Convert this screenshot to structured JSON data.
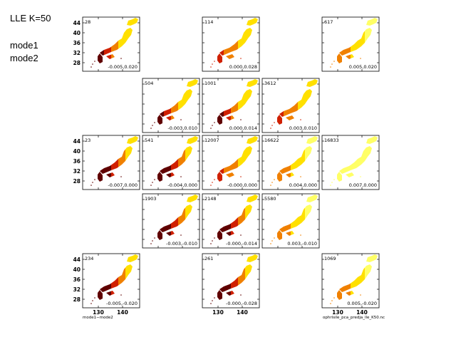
{
  "header": {
    "title": "LLE K=50",
    "mode1": "mode1",
    "mode2": "mode2"
  },
  "axes": {
    "y_ticks": [
      "44",
      "40",
      "36",
      "32",
      "28"
    ],
    "x_ticks": [
      "130",
      "140"
    ]
  },
  "footer": {
    "left": "mode1−mode2",
    "right": "ophrisile_pca_predja_lle_K50.nc"
  },
  "colors": {
    "light_yellow": "#ffff66",
    "yellow": "#ffe000",
    "orange": "#f08000",
    "red": "#d02000",
    "dark_red": "#600000"
  },
  "panels": [
    {
      "row": 0,
      "col": 0,
      "count": "28",
      "coords": "-0.005,0.020",
      "scheme": "A"
    },
    {
      "row": 0,
      "col": 2,
      "count": "114",
      "coords": "0.000,0.028",
      "scheme": "B"
    },
    {
      "row": 0,
      "col": 4,
      "count": "617",
      "coords": "0.005,0.020",
      "scheme": "C"
    },
    {
      "row": 1,
      "col": 1,
      "count": "504",
      "coords": "-0.003,0.010",
      "scheme": "A"
    },
    {
      "row": 1,
      "col": 2,
      "count": "1001",
      "coords": "0.000,0.014",
      "scheme": "A"
    },
    {
      "row": 1,
      "col": 3,
      "count": "3612",
      "coords": "0.003,0.010",
      "scheme": "B"
    },
    {
      "row": 2,
      "col": 0,
      "count": "23",
      "coords": "-0.007,0.000",
      "scheme": "D"
    },
    {
      "row": 2,
      "col": 1,
      "count": "541",
      "coords": "-0.004,0.000",
      "scheme": "D"
    },
    {
      "row": 2,
      "col": 2,
      "count": "12007",
      "coords": "-0.000,0.000",
      "scheme": "B"
    },
    {
      "row": 2,
      "col": 3,
      "count": "16622",
      "coords": "0.004,0.000",
      "scheme": "C"
    },
    {
      "row": 2,
      "col": 4,
      "count": "16833",
      "coords": "0.007,0.000",
      "scheme": "E"
    },
    {
      "row": 3,
      "col": 1,
      "count": "1903",
      "coords": "-0.003,-0.010",
      "scheme": "D"
    },
    {
      "row": 3,
      "col": 2,
      "count": "2148",
      "coords": "-0.000,-0.014",
      "scheme": "D"
    },
    {
      "row": 3,
      "col": 3,
      "count": "5580",
      "coords": "0.003,-0.010",
      "scheme": "C"
    },
    {
      "row": 4,
      "col": 0,
      "count": "234",
      "coords": "-0.005,-0.020",
      "scheme": "D"
    },
    {
      "row": 4,
      "col": 2,
      "count": "261",
      "coords": "-0.000,-0.028",
      "scheme": "D"
    },
    {
      "row": 4,
      "col": 4,
      "count": "1069",
      "coords": "0.005,-0.020",
      "scheme": "C"
    }
  ]
}
